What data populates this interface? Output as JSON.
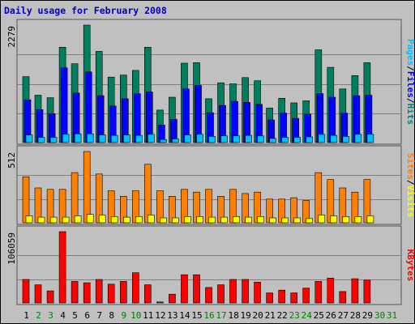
{
  "chart_data": {
    "type": "bar",
    "title": "Daily usage for February 2008",
    "days": [
      {
        "label": "1",
        "weekend": false
      },
      {
        "label": "2",
        "weekend": true
      },
      {
        "label": "3",
        "weekend": true
      },
      {
        "label": "4",
        "weekend": false
      },
      {
        "label": "5",
        "weekend": false
      },
      {
        "label": "6",
        "weekend": false
      },
      {
        "label": "7",
        "weekend": false
      },
      {
        "label": "8",
        "weekend": false
      },
      {
        "label": "9",
        "weekend": true
      },
      {
        "label": "10",
        "weekend": true
      },
      {
        "label": "11",
        "weekend": false
      },
      {
        "label": "12",
        "weekend": false
      },
      {
        "label": "13",
        "weekend": false
      },
      {
        "label": "14",
        "weekend": false
      },
      {
        "label": "15",
        "weekend": false
      },
      {
        "label": "16",
        "weekend": true
      },
      {
        "label": "17",
        "weekend": true
      },
      {
        "label": "18",
        "weekend": false
      },
      {
        "label": "19",
        "weekend": false
      },
      {
        "label": "20",
        "weekend": false
      },
      {
        "label": "21",
        "weekend": false
      },
      {
        "label": "22",
        "weekend": false
      },
      {
        "label": "23",
        "weekend": true
      },
      {
        "label": "24",
        "weekend": true
      },
      {
        "label": "25",
        "weekend": false
      },
      {
        "label": "26",
        "weekend": false
      },
      {
        "label": "27",
        "weekend": false
      },
      {
        "label": "28",
        "weekend": false
      },
      {
        "label": "29",
        "weekend": false
      },
      {
        "label": "30",
        "weekend": true
      },
      {
        "label": "31",
        "weekend": true
      }
    ],
    "panels": [
      {
        "name": "pages-files-hits",
        "ymax_label": "2279",
        "ymax": 2279,
        "legend": [
          {
            "text": "Pages",
            "color": "#00c0ff"
          },
          {
            "text": "/",
            "color": "#000000"
          },
          {
            "text": "Files",
            "color": "#0000ff"
          },
          {
            "text": "/",
            "color": "#000000"
          },
          {
            "text": "Hits",
            "color": "#008080"
          }
        ],
        "series": [
          {
            "name": "Hits",
            "color": "#007f5f",
            "offset": 0,
            "values": [
              1280,
              920,
              870,
              1850,
              1530,
              2279,
              1770,
              1270,
              1310,
              1400,
              1850,
              630,
              880,
              1540,
              1550,
              850,
              1160,
              1140,
              1260,
              1200,
              670,
              860,
              770,
              810,
              1800,
              1460,
              1040,
              1300,
              1550,
              0,
              0
            ]
          },
          {
            "name": "Files",
            "color": "#0000ff",
            "offset": 1,
            "values": [
              830,
              640,
              560,
              1450,
              960,
              1370,
              910,
              710,
              850,
              950,
              980,
              340,
              450,
              1040,
              1110,
              580,
              720,
              800,
              780,
              740,
              440,
              570,
              470,
              550,
              950,
              880,
              570,
              910,
              920,
              0,
              0
            ]
          },
          {
            "name": "Pages",
            "color": "#00c0ff",
            "offset": 2,
            "values": [
              150,
              100,
              100,
              160,
              170,
              170,
              150,
              140,
              150,
              140,
              160,
              60,
              70,
              150,
              160,
              120,
              130,
              130,
              140,
              130,
              80,
              100,
              100,
              110,
              160,
              140,
              120,
              160,
              160,
              0,
              0
            ]
          }
        ]
      },
      {
        "name": "visits-sites",
        "ymax_label": "512",
        "ymax": 512,
        "legend": [
          {
            "text": "Sites",
            "color": "#ff8000"
          },
          {
            "text": "/",
            "color": "#000000"
          },
          {
            "text": "Visits",
            "color": "#ffff00"
          }
        ],
        "series": [
          {
            "name": "Visits",
            "color": "#ff8000",
            "offset": 0,
            "values": [
              330,
              250,
              240,
              240,
              360,
              512,
              350,
              230,
              190,
              230,
              420,
              230,
              190,
              240,
              220,
              240,
              190,
              240,
              210,
              220,
              170,
              170,
              180,
              160,
              360,
              310,
              250,
              220,
              310,
              0,
              0
            ]
          },
          {
            "name": "Sites",
            "color": "#ffff00",
            "offset": 2,
            "values": [
              50,
              40,
              40,
              40,
              50,
              60,
              55,
              45,
              40,
              45,
              55,
              35,
              35,
              45,
              45,
              40,
              40,
              45,
              40,
              45,
              35,
              35,
              35,
              30,
              55,
              50,
              45,
              45,
              50,
              0,
              0
            ]
          }
        ]
      },
      {
        "name": "kbytes",
        "ymax_label": "106059",
        "ymax": 106059,
        "legend": [
          {
            "text": "KBytes",
            "color": "#ff0000"
          }
        ],
        "series": [
          {
            "name": "KBytes",
            "color": "#ff0000",
            "offset": 0,
            "values": [
              35000,
              27000,
              18000,
              106059,
              32000,
              30000,
              35000,
              28000,
              32000,
              45000,
              27000,
              1500,
              13000,
              42000,
              42000,
              23000,
              27000,
              35000,
              35000,
              31000,
              15000,
              19000,
              15000,
              22000,
              32000,
              37000,
              17000,
              36000,
              34000,
              0,
              0
            ]
          }
        ]
      }
    ],
    "grid": true
  }
}
